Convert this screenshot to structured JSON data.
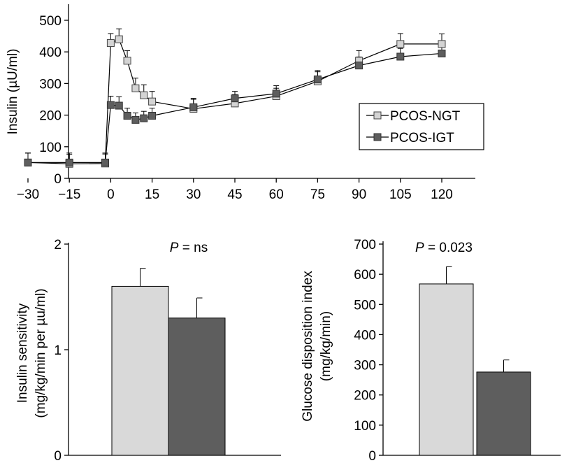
{
  "chart_data": [
    {
      "type": "line",
      "ylabel": "Insulin (µU/ml)",
      "xlabel": "",
      "x_ticks": [
        -30,
        -15,
        0,
        15,
        30,
        45,
        60,
        75,
        90,
        105,
        120
      ],
      "y_ticks": [
        0,
        100,
        200,
        300,
        400,
        500
      ],
      "xlim": [
        -30,
        120
      ],
      "ylim": [
        0,
        540
      ],
      "legend_position": "right",
      "series": [
        {
          "name": "PCOS-NGT",
          "marker": "square-open",
          "color": "#d4d4d4",
          "x": [
            -30,
            -15,
            -2,
            0,
            3,
            6,
            9,
            12,
            15,
            30,
            45,
            60,
            75,
            90,
            105,
            120
          ],
          "y": [
            50,
            46,
            47,
            428,
            440,
            372,
            285,
            263,
            243,
            220,
            237,
            260,
            307,
            372,
            425,
            425
          ],
          "err": [
            30,
            30,
            30,
            30,
            33,
            32,
            32,
            33,
            32,
            30,
            28,
            25,
            30,
            32,
            33,
            32
          ]
        },
        {
          "name": "PCOS-IGT",
          "marker": "square-filled",
          "color": "#5e5e5e",
          "x": [
            -30,
            -15,
            -2,
            0,
            3,
            6,
            9,
            12,
            15,
            30,
            45,
            60,
            75,
            90,
            105,
            120
          ],
          "y": [
            50,
            50,
            50,
            232,
            230,
            198,
            185,
            190,
            198,
            225,
            253,
            268,
            313,
            357,
            385,
            395
          ],
          "err": [
            30,
            30,
            30,
            28,
            28,
            24,
            22,
            22,
            24,
            28,
            22,
            25,
            28,
            27,
            26,
            27
          ]
        }
      ]
    },
    {
      "type": "bar",
      "ylabel_line1": "Insulin sensitivity",
      "ylabel_line2": "(mg/kg/min per µu/ml)",
      "annotation_p": "P",
      "annotation_value": " = ns",
      "y_ticks": [
        0,
        1,
        2
      ],
      "ylim": [
        0,
        2
      ],
      "series": [
        {
          "name": "PCOS-NGT",
          "value": 1.6,
          "err": 0.17,
          "color": "#d9d9d9"
        },
        {
          "name": "PCOS-IGT",
          "value": 1.3,
          "err": 0.19,
          "color": "#5e5e5e"
        }
      ]
    },
    {
      "type": "bar",
      "ylabel_line1": "Glucose disposition index",
      "ylabel_line2": "(mg/kg/min)",
      "annotation_p": "P",
      "annotation_value": " = 0.023",
      "y_ticks": [
        0,
        100,
        200,
        300,
        400,
        500,
        600,
        700
      ],
      "ylim": [
        0,
        700
      ],
      "series": [
        {
          "name": "PCOS-NGT",
          "value": 568,
          "err": 57,
          "color": "#d9d9d9"
        },
        {
          "name": "PCOS-IGT",
          "value": 276,
          "err": 40,
          "color": "#5e5e5e"
        }
      ]
    }
  ]
}
